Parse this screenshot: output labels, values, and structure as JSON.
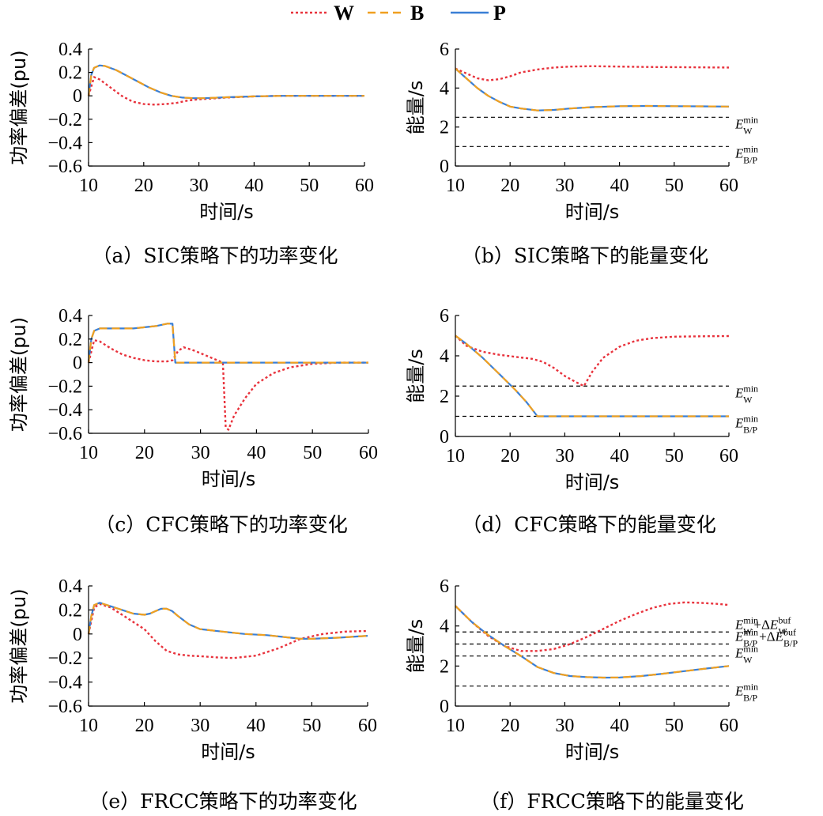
{
  "legend": [
    {
      "name": "W",
      "color": "#e8323c",
      "dash": "3,3"
    },
    {
      "name": "B",
      "color": "#f0a020",
      "dash": "10,6"
    },
    {
      "name": "P",
      "color": "#3a7fd5",
      "dash": ""
    }
  ],
  "chart_data": [
    {
      "type": "line",
      "panel": "a",
      "caption": "（a）SIC策略下的功率变化",
      "xlabel": "时间/s",
      "ylabel": "功率偏差(pu)",
      "xlim": [
        10,
        60
      ],
      "ylim": [
        -0.6,
        0.4
      ],
      "xticks": [
        10,
        20,
        30,
        40,
        50,
        60
      ],
      "yticks": [
        0.4,
        0.2,
        0,
        -0.2,
        -0.4,
        -0.6
      ],
      "yticklabels": [
        "0.4",
        "0.2",
        "0",
        "−0.2",
        "−0.4",
        "−0.6"
      ],
      "series": [
        {
          "name": "W",
          "x": [
            10,
            11,
            12,
            14,
            16,
            18,
            20,
            22,
            24,
            26,
            28,
            30,
            35,
            40,
            45,
            50,
            55,
            60
          ],
          "y": [
            0,
            0.16,
            0.14,
            0.07,
            0.0,
            -0.05,
            -0.07,
            -0.075,
            -0.07,
            -0.06,
            -0.04,
            -0.03,
            -0.015,
            -0.005,
            0,
            0,
            0,
            0
          ]
        },
        {
          "name": "B",
          "x": [
            10,
            10.5,
            11,
            12,
            13,
            15,
            17,
            19,
            21,
            23,
            25,
            27,
            29,
            31,
            35,
            40,
            45,
            50,
            55,
            60
          ],
          "y": [
            0,
            0.18,
            0.24,
            0.26,
            0.255,
            0.22,
            0.17,
            0.12,
            0.07,
            0.03,
            0.0,
            -0.015,
            -0.02,
            -0.02,
            -0.012,
            -0.005,
            0,
            0,
            0,
            0
          ]
        },
        {
          "name": "P",
          "x": [
            10,
            10.5,
            11,
            12,
            13,
            15,
            17,
            19,
            21,
            23,
            25,
            27,
            29,
            31,
            35,
            40,
            45,
            50,
            55,
            60
          ],
          "y": [
            0,
            0.18,
            0.24,
            0.26,
            0.255,
            0.22,
            0.17,
            0.12,
            0.07,
            0.03,
            0.0,
            -0.015,
            -0.02,
            -0.02,
            -0.012,
            -0.005,
            0,
            0,
            0,
            0
          ]
        }
      ]
    },
    {
      "type": "line",
      "panel": "b",
      "caption": "（b）SIC策略下的能量变化",
      "xlabel": "时间/s",
      "ylabel": "能量/s",
      "xlim": [
        10,
        60
      ],
      "ylim": [
        0,
        6
      ],
      "xticks": [
        10,
        20,
        30,
        40,
        50,
        60
      ],
      "yticks": [
        6,
        4,
        2,
        0
      ],
      "yticklabels": [
        "6",
        "4",
        "2",
        "0"
      ],
      "refs": [
        {
          "y": 2.5,
          "main": "E",
          "sup": "min",
          "sub": "W"
        },
        {
          "y": 1.0,
          "main": "E",
          "sup": "min",
          "sub": "B/P"
        }
      ],
      "series": [
        {
          "name": "W",
          "x": [
            10,
            12,
            14,
            16,
            18,
            20,
            22,
            25,
            28,
            31,
            35,
            40,
            45,
            50,
            55,
            60
          ],
          "y": [
            5.0,
            4.75,
            4.5,
            4.4,
            4.45,
            4.6,
            4.8,
            4.95,
            5.05,
            5.1,
            5.12,
            5.1,
            5.08,
            5.07,
            5.06,
            5.05
          ]
        },
        {
          "name": "B",
          "x": [
            10,
            12,
            14,
            16,
            18,
            20,
            22,
            25,
            28,
            31,
            35,
            40,
            45,
            50,
            55,
            60
          ],
          "y": [
            5.0,
            4.5,
            4.0,
            3.6,
            3.3,
            3.05,
            2.95,
            2.85,
            2.88,
            2.95,
            3.02,
            3.07,
            3.08,
            3.07,
            3.06,
            3.05
          ]
        },
        {
          "name": "P",
          "x": [
            10,
            12,
            14,
            16,
            18,
            20,
            22,
            25,
            28,
            31,
            35,
            40,
            45,
            50,
            55,
            60
          ],
          "y": [
            5.0,
            4.5,
            4.0,
            3.6,
            3.3,
            3.05,
            2.95,
            2.85,
            2.88,
            2.95,
            3.02,
            3.07,
            3.08,
            3.07,
            3.06,
            3.05
          ]
        }
      ]
    },
    {
      "type": "line",
      "panel": "c",
      "caption": "（c）CFC策略下的功率变化",
      "xlabel": "时间/s",
      "ylabel": "功率偏差(pu)",
      "xlim": [
        10,
        60
      ],
      "ylim": [
        -0.6,
        0.4
      ],
      "xticks": [
        10,
        20,
        30,
        40,
        50,
        60
      ],
      "yticks": [
        0.4,
        0.2,
        0,
        -0.2,
        -0.4,
        -0.6
      ],
      "yticklabels": [
        "0.4",
        "0.2",
        "0",
        "−0.2",
        "−0.4",
        "−0.6"
      ],
      "series": [
        {
          "name": "W",
          "x": [
            10,
            11,
            12,
            14,
            16,
            18,
            20,
            22,
            24,
            25,
            26,
            27,
            29,
            31,
            33,
            34,
            34.5,
            35,
            36,
            38,
            40,
            43,
            46,
            50,
            55,
            60
          ],
          "y": [
            0,
            0.19,
            0.18,
            0.12,
            0.07,
            0.04,
            0.02,
            0.01,
            0.01,
            0.02,
            0.1,
            0.13,
            0.1,
            0.06,
            0.02,
            0.0,
            -0.55,
            -0.57,
            -0.45,
            -0.3,
            -0.18,
            -0.09,
            -0.04,
            -0.01,
            0,
            0
          ]
        },
        {
          "name": "B",
          "x": [
            10,
            10.5,
            11,
            12,
            14,
            16,
            18,
            20,
            22,
            24,
            25,
            25.5,
            26,
            28,
            30,
            35,
            40,
            50,
            60
          ],
          "y": [
            0,
            0.2,
            0.27,
            0.29,
            0.29,
            0.29,
            0.29,
            0.3,
            0.31,
            0.33,
            0.33,
            0.0,
            0,
            0,
            0,
            0,
            0,
            0,
            0
          ]
        },
        {
          "name": "P",
          "x": [
            10,
            10.5,
            11,
            12,
            14,
            16,
            18,
            20,
            22,
            24,
            25,
            25.5,
            26,
            28,
            30,
            35,
            40,
            50,
            60
          ],
          "y": [
            0,
            0.2,
            0.27,
            0.29,
            0.29,
            0.29,
            0.29,
            0.3,
            0.31,
            0.33,
            0.33,
            0.0,
            0,
            0,
            0,
            0,
            0,
            0,
            0
          ]
        }
      ]
    },
    {
      "type": "line",
      "panel": "d",
      "caption": "（d）CFC策略下的能量变化",
      "xlabel": "时间/s",
      "ylabel": "能量/s",
      "xlim": [
        10,
        60
      ],
      "ylim": [
        0,
        6
      ],
      "xticks": [
        10,
        20,
        30,
        40,
        50,
        60
      ],
      "yticks": [
        6,
        4,
        2,
        0
      ],
      "yticklabels": [
        "6",
        "4",
        "2",
        "0"
      ],
      "refs": [
        {
          "y": 2.5,
          "main": "E",
          "sup": "min",
          "sub": "W"
        },
        {
          "y": 1.0,
          "main": "E",
          "sup": "min",
          "sub": "B/P"
        }
      ],
      "series": [
        {
          "name": "W",
          "x": [
            10,
            12,
            15,
            18,
            21,
            24,
            26,
            28,
            30,
            32,
            33.5,
            35,
            37,
            40,
            43,
            46,
            50,
            55,
            60
          ],
          "y": [
            5.0,
            4.5,
            4.2,
            4.05,
            3.95,
            3.85,
            3.7,
            3.4,
            3.0,
            2.7,
            2.5,
            3.2,
            3.9,
            4.45,
            4.75,
            4.88,
            4.95,
            4.97,
            4.98
          ]
        },
        {
          "name": "B",
          "x": [
            10,
            12,
            15,
            18,
            21,
            23,
            25,
            26,
            30,
            40,
            50,
            60
          ],
          "y": [
            5.0,
            4.6,
            3.9,
            3.1,
            2.3,
            1.7,
            1.0,
            1.0,
            1.0,
            1.0,
            1.0,
            1.0
          ]
        },
        {
          "name": "P",
          "x": [
            10,
            12,
            15,
            18,
            21,
            23,
            25,
            26,
            30,
            40,
            50,
            60
          ],
          "y": [
            5.0,
            4.6,
            3.9,
            3.1,
            2.3,
            1.7,
            1.0,
            1.0,
            1.0,
            1.0,
            1.0,
            1.0
          ]
        }
      ]
    },
    {
      "type": "line",
      "panel": "e",
      "caption": "（e）FRCC策略下的功率变化",
      "xlabel": "时间/s",
      "ylabel": "功率偏差(pu)",
      "xlim": [
        10,
        60
      ],
      "ylim": [
        -0.6,
        0.4
      ],
      "xticks": [
        10,
        20,
        30,
        40,
        50,
        60
      ],
      "yticks": [
        0.4,
        0.2,
        0,
        -0.2,
        -0.4,
        -0.6
      ],
      "yticklabels": [
        "0.4",
        "0.2",
        "0",
        "−0.2",
        "−0.4",
        "−0.6"
      ],
      "series": [
        {
          "name": "W",
          "x": [
            10,
            11,
            12,
            14,
            16,
            18,
            20,
            22,
            24,
            26,
            28,
            30,
            33,
            36,
            40,
            44,
            48,
            52,
            56,
            60
          ],
          "y": [
            0,
            0.22,
            0.25,
            0.22,
            0.16,
            0.1,
            0.04,
            -0.06,
            -0.14,
            -0.17,
            -0.18,
            -0.185,
            -0.195,
            -0.2,
            -0.18,
            -0.12,
            -0.04,
            0.0,
            0.02,
            0.025
          ]
        },
        {
          "name": "B",
          "x": [
            10,
            10.5,
            11,
            12,
            14,
            16,
            18,
            20,
            21,
            22,
            23,
            24,
            25,
            26,
            28,
            30,
            34,
            38,
            42,
            46,
            48,
            50,
            55,
            60
          ],
          "y": [
            0,
            0.15,
            0.24,
            0.26,
            0.23,
            0.2,
            0.17,
            0.16,
            0.17,
            0.19,
            0.21,
            0.21,
            0.19,
            0.15,
            0.08,
            0.04,
            0.02,
            0.0,
            -0.01,
            -0.03,
            -0.04,
            -0.04,
            -0.03,
            -0.015
          ]
        },
        {
          "name": "P",
          "x": [
            10,
            10.5,
            11,
            12,
            14,
            16,
            18,
            20,
            21,
            22,
            23,
            24,
            25,
            26,
            28,
            30,
            34,
            38,
            42,
            46,
            48,
            50,
            55,
            60
          ],
          "y": [
            0,
            0.15,
            0.24,
            0.26,
            0.23,
            0.2,
            0.17,
            0.16,
            0.17,
            0.19,
            0.21,
            0.21,
            0.19,
            0.15,
            0.08,
            0.04,
            0.02,
            0.0,
            -0.01,
            -0.03,
            -0.04,
            -0.04,
            -0.03,
            -0.015
          ]
        }
      ]
    },
    {
      "type": "line",
      "panel": "f",
      "caption": "（f）FRCC策略下的能量变化",
      "xlabel": "时间/s",
      "ylabel": "能量/s",
      "xlim": [
        10,
        60
      ],
      "ylim": [
        0,
        6
      ],
      "xticks": [
        10,
        20,
        30,
        40,
        50,
        60
      ],
      "yticks": [
        6,
        4,
        2,
        0
      ],
      "yticklabels": [
        "6",
        "4",
        "2",
        "0"
      ],
      "refs": [
        {
          "y": 3.7,
          "main": "E",
          "sup": "min",
          "sub": "W",
          "extra": "+Δ",
          "extraMain": "E",
          "extraSup": "buf",
          "extraSub": "W"
        },
        {
          "y": 3.1,
          "main": "E",
          "sup": "min",
          "sub": "B/P",
          "extra": "+Δ",
          "extraMain": "E",
          "extraSup": "buf",
          "extraSub": "B/P"
        },
        {
          "y": 2.5,
          "main": "E",
          "sup": "min",
          "sub": "W"
        },
        {
          "y": 1.0,
          "main": "E",
          "sup": "min",
          "sub": "B/P"
        }
      ],
      "series": [
        {
          "name": "W",
          "x": [
            10,
            13,
            16,
            19,
            22,
            25,
            28,
            31,
            34,
            37,
            40,
            43,
            46,
            49,
            52,
            55,
            58,
            60
          ],
          "y": [
            5.0,
            4.2,
            3.5,
            3.0,
            2.75,
            2.75,
            2.85,
            3.1,
            3.45,
            3.85,
            4.25,
            4.6,
            4.9,
            5.1,
            5.18,
            5.15,
            5.1,
            5.05
          ]
        },
        {
          "name": "B",
          "x": [
            10,
            13,
            16,
            19,
            22,
            25,
            28,
            31,
            34,
            37,
            40,
            44,
            48,
            52,
            56,
            60
          ],
          "y": [
            5.0,
            4.2,
            3.55,
            3.0,
            2.5,
            1.95,
            1.65,
            1.5,
            1.45,
            1.42,
            1.43,
            1.5,
            1.62,
            1.75,
            1.88,
            2.0
          ]
        },
        {
          "name": "P",
          "x": [
            10,
            13,
            16,
            19,
            22,
            25,
            28,
            31,
            34,
            37,
            40,
            44,
            48,
            52,
            56,
            60
          ],
          "y": [
            5.0,
            4.2,
            3.55,
            3.0,
            2.5,
            1.95,
            1.65,
            1.5,
            1.45,
            1.42,
            1.43,
            1.5,
            1.62,
            1.75,
            1.88,
            2.0
          ]
        }
      ]
    }
  ]
}
